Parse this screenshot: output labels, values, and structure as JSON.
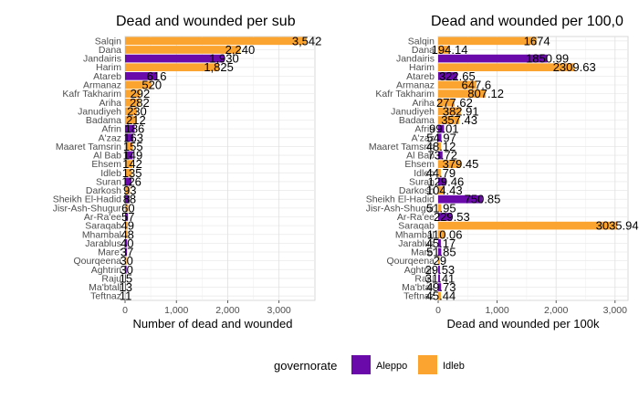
{
  "legend": {
    "title": "governorate",
    "items": [
      {
        "label": "Aleppo",
        "color": "#6a0aab"
      },
      {
        "label": "Idleb",
        "color": "#fba42f"
      }
    ]
  },
  "chart_data": [
    {
      "type": "bar",
      "orientation": "horizontal",
      "title": "Dead and wounded per sub",
      "xlabel": "Number of dead and wounded",
      "ylabel": "",
      "xlim": [
        0,
        3700
      ],
      "xticks": [
        0,
        1000,
        2000,
        3000
      ],
      "xtick_labels": [
        "0",
        "1,000",
        "2,000",
        "3,000"
      ],
      "grid": true,
      "categories": [
        "Salqin",
        "Dana",
        "Jandairis",
        "Harim",
        "Atareb",
        "Armanaz",
        "Kafr Takharim",
        "Ariha",
        "Janudiyeh",
        "Badama",
        "Afrin",
        "A'zaz",
        "Maaret Tamsrin",
        "Al Bab",
        "Ehsem",
        "Idleb",
        "Suran",
        "Darkosh",
        "Sheikh El-Hadid",
        "Jisr-Ash-Shugur",
        "Ar-Ra'ee",
        "Saraqab",
        "Mhambal",
        "Jarablus",
        "Mare'",
        "Qourqeena",
        "Aghtrin",
        "Raju",
        "Ma'btali",
        "Teftnaz"
      ],
      "values": [
        3542,
        2240,
        1930,
        1825,
        616,
        520,
        292,
        282,
        230,
        212,
        186,
        163,
        155,
        149,
        142,
        135,
        126,
        93,
        88,
        60,
        57,
        49,
        48,
        40,
        37,
        30,
        30,
        15,
        13,
        11
      ],
      "value_labels": [
        "3,542",
        "2,240",
        "1,930",
        "1,825",
        "616",
        "520",
        "292",
        "282",
        "230",
        "212",
        "186",
        "163",
        "155",
        "149",
        "142",
        "135",
        "126",
        "93",
        "88",
        "60",
        "57",
        "49",
        "48",
        "40",
        "37",
        "30",
        "30",
        "15",
        "13",
        "11"
      ],
      "governorate": [
        "Idleb",
        "Idleb",
        "Aleppo",
        "Idleb",
        "Aleppo",
        "Idleb",
        "Idleb",
        "Idleb",
        "Idleb",
        "Idleb",
        "Aleppo",
        "Aleppo",
        "Idleb",
        "Aleppo",
        "Idleb",
        "Idleb",
        "Aleppo",
        "Idleb",
        "Aleppo",
        "Idleb",
        "Aleppo",
        "Idleb",
        "Idleb",
        "Aleppo",
        "Aleppo",
        "Idleb",
        "Aleppo",
        "Aleppo",
        "Aleppo",
        "Idleb"
      ]
    },
    {
      "type": "bar",
      "orientation": "horizontal",
      "title": "Dead and wounded per 100,0",
      "xlabel": "Dead and wounded per 100k",
      "ylabel": "",
      "xlim": [
        0,
        3220
      ],
      "xticks": [
        0,
        1000,
        2000,
        3000
      ],
      "xtick_labels": [
        "0",
        "1,000",
        "2,000",
        "3,000"
      ],
      "grid": true,
      "categories": [
        "Salqin",
        "Dana",
        "Jandairis",
        "Harim",
        "Atareb",
        "Armanaz",
        "Kafr Takharim",
        "Ariha",
        "Janudiyeh",
        "Badama",
        "Afrin",
        "A'zaz",
        "Maaret Tamsrin",
        "Al Bab",
        "Ehsem",
        "Idleb",
        "Suran",
        "Darkosh",
        "Sheikh El-Hadid",
        "Jisr-Ash-Shugur",
        "Ar-Ra'ee",
        "Saraqab",
        "Mhambal",
        "Jarablus",
        "Mare'",
        "Qourqeena",
        "Aghtrin",
        "Raju",
        "Ma'btali",
        "Teftnaz"
      ],
      "values": [
        1674,
        194.14,
        1850.99,
        2309.63,
        322.65,
        647.6,
        807.12,
        277.62,
        382.91,
        357.43,
        99.01,
        54.97,
        48.12,
        73.72,
        379.45,
        44.79,
        129.46,
        104.43,
        750.85,
        51.95,
        229.53,
        3035.94,
        110.06,
        45.17,
        51.85,
        29,
        29.53,
        31.41,
        49.73,
        45.44
      ],
      "value_labels": [
        "1674",
        "194.14",
        "1850.99",
        "2309.63",
        "322.65",
        "647.6",
        "807.12",
        "277.62",
        "382.91",
        "357.43",
        "99.01",
        "54.97",
        "48.12",
        "73.72",
        "379.45",
        "44.79",
        "129.46",
        "104.43",
        "750.85",
        "51.95",
        "229.53",
        "3035.94",
        "110.06",
        "45.17",
        "51.85",
        "29",
        "29.53",
        "31.41",
        "49.73",
        "45.44"
      ],
      "governorate": [
        "Idleb",
        "Idleb",
        "Aleppo",
        "Idleb",
        "Aleppo",
        "Idleb",
        "Idleb",
        "Idleb",
        "Idleb",
        "Idleb",
        "Aleppo",
        "Aleppo",
        "Idleb",
        "Aleppo",
        "Idleb",
        "Idleb",
        "Aleppo",
        "Idleb",
        "Aleppo",
        "Idleb",
        "Aleppo",
        "Idleb",
        "Idleb",
        "Aleppo",
        "Aleppo",
        "Idleb",
        "Aleppo",
        "Aleppo",
        "Aleppo",
        "Idleb"
      ]
    }
  ]
}
